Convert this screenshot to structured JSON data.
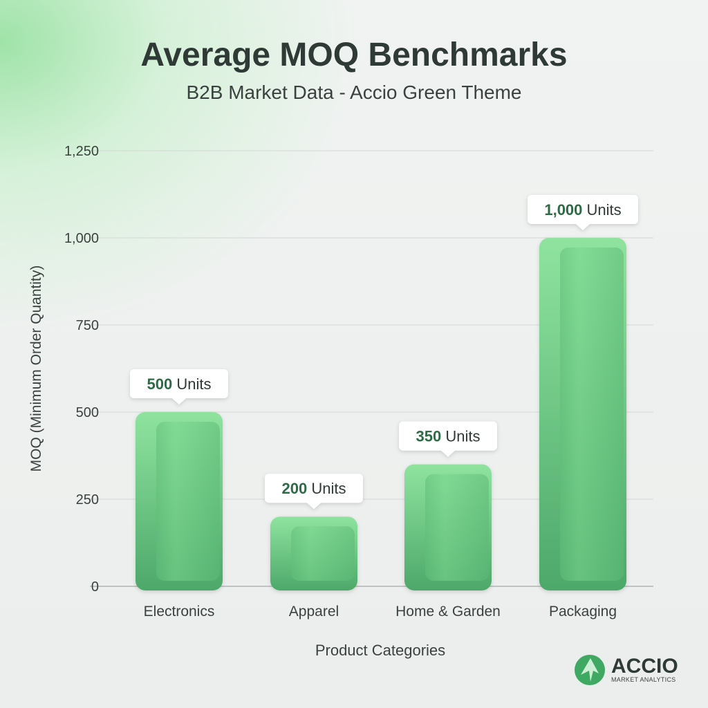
{
  "chart_data": {
    "type": "bar",
    "title": "Average MOQ Benchmarks",
    "subtitle": "B2B Market Data - Accio Green Theme",
    "xlabel": "Product Categories",
    "ylabel": "MOQ (Minimum Order Quantity)",
    "categories": [
      "Electronics",
      "Apparel",
      "Home & Garden",
      "Packaging"
    ],
    "values": [
      500,
      200,
      350,
      1000
    ],
    "data_labels": [
      "500",
      "200",
      "350",
      "1,000"
    ],
    "data_label_unit": " Units",
    "ylim": [
      0,
      1250
    ],
    "yticks": [
      0,
      250,
      500,
      750,
      1000,
      1250
    ],
    "ytick_labels": [
      "0",
      "250",
      "500",
      "750",
      "1,000",
      "1,250"
    ],
    "grid": true,
    "colors": {
      "bar_top": "#8fe39f",
      "bar_bottom": "#4da86a",
      "label_value": "#2d6b45"
    }
  },
  "logo": {
    "name": "ACCIO",
    "tagline": "MARKET ANALYTICS"
  }
}
